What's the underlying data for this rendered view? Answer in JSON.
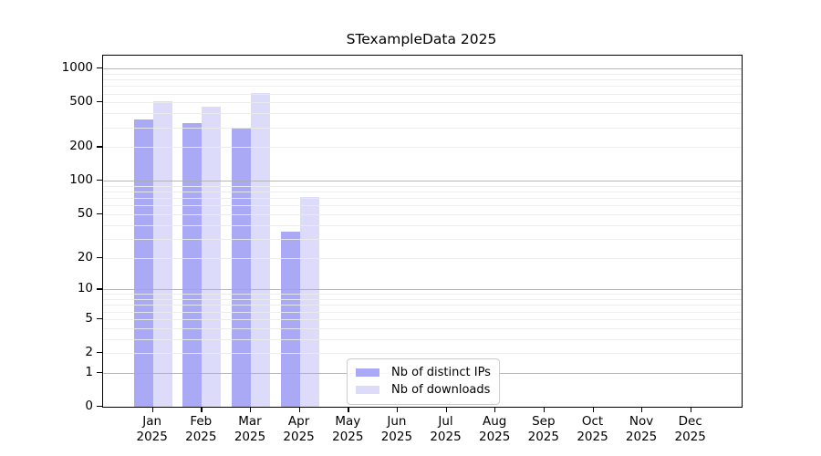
{
  "title": "STexampleData 2025",
  "chart_data": {
    "type": "bar",
    "title": "STexampleData 2025",
    "categories": [
      "Jan",
      "Feb",
      "Mar",
      "Apr",
      "May",
      "Jun",
      "Jul",
      "Aug",
      "Sep",
      "Oct",
      "Nov",
      "Dec"
    ],
    "category_year": "2025",
    "series": [
      {
        "name": "Nb of distinct IPs",
        "color": "#a9a9f5",
        "values": [
          350,
          330,
          296,
          35,
          null,
          null,
          null,
          null,
          null,
          null,
          null,
          null
        ]
      },
      {
        "name": "Nb of downloads",
        "color": "#dcdcfa",
        "values": [
          510,
          458,
          604,
          71,
          null,
          null,
          null,
          null,
          null,
          null,
          null,
          null
        ]
      }
    ],
    "xlabel": "",
    "ylabel": "",
    "y_scale": "log10(1+y)",
    "y_ticks": [
      0,
      1,
      2,
      5,
      10,
      20,
      50,
      100,
      200,
      500,
      1000
    ],
    "y_major_gridlines": [
      1,
      10,
      100,
      1000
    ],
    "y_minor_gridlines": [
      2,
      3,
      4,
      5,
      6,
      7,
      8,
      9,
      20,
      30,
      40,
      50,
      60,
      70,
      80,
      90,
      200,
      300,
      400,
      500,
      600,
      700,
      800,
      900
    ],
    "ylim": [
      0,
      1300
    ],
    "grid": true,
    "legend_position": "inside-bottom-center",
    "colors": {
      "distinct_ips": "#a9a9f5",
      "downloads": "#dcdcfa",
      "major_grid": "#aaaaaa",
      "minor_grid": "#ebebeb",
      "spine": "#000000",
      "background": "#ffffff"
    }
  }
}
